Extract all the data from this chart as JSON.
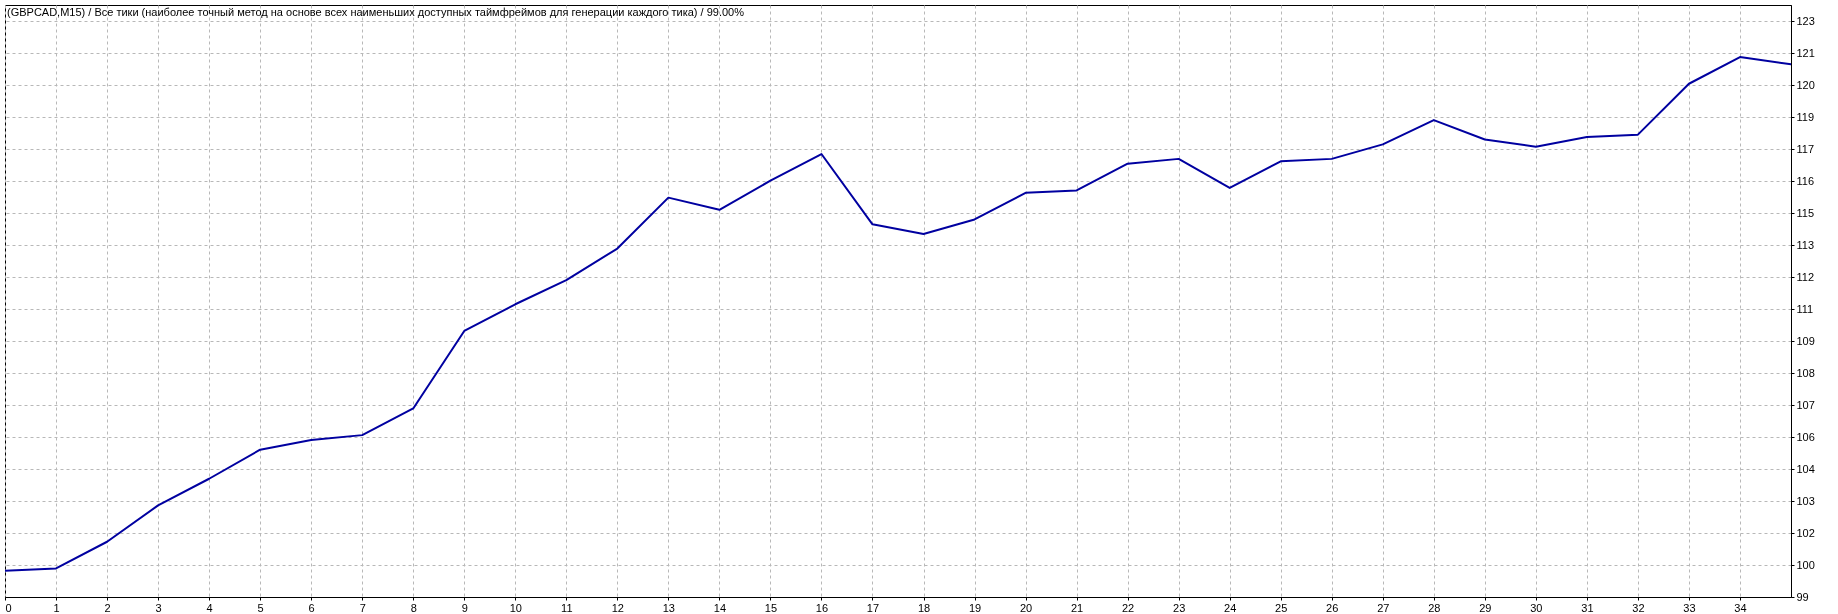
{
  "chart_data": {
    "type": "line",
    "title": "(GBPCAD,M15) / Все тики (наиболее точный метод на основе всех наименьших доступных таймфреймов для генерации каждого тика) / 99.00%",
    "x": [
      0,
      1,
      2,
      3,
      4,
      5,
      6,
      7,
      8,
      9,
      10,
      11,
      12,
      13,
      14,
      15,
      16,
      17,
      18,
      19,
      20,
      21,
      22,
      23,
      24,
      25,
      26,
      27,
      28,
      29,
      30,
      31,
      32,
      33,
      34,
      35
    ],
    "values": [
      100.0,
      100.1,
      101.2,
      102.7,
      103.8,
      105.0,
      105.4,
      105.6,
      106.7,
      109.9,
      111.0,
      112.0,
      113.3,
      115.4,
      114.9,
      116.1,
      117.2,
      114.3,
      113.9,
      114.5,
      115.6,
      115.7,
      116.8,
      117.0,
      115.8,
      116.9,
      117.0,
      117.6,
      118.6,
      117.8,
      117.5,
      117.9,
      118.0,
      120.1,
      121.2,
      120.9
    ],
    "color": "#0000a0",
    "xlim": [
      0,
      35
    ],
    "xticks": [
      0,
      1,
      2,
      3,
      4,
      5,
      6,
      7,
      8,
      9,
      10,
      11,
      12,
      13,
      14,
      15,
      16,
      17,
      18,
      19,
      20,
      21,
      22,
      23,
      24,
      25,
      26,
      27,
      28,
      29,
      30,
      31,
      32,
      33,
      34
    ],
    "ylim": [
      98.92,
      123.35
    ],
    "yticks": [
      {
        "value": 98.92,
        "label": "99"
      },
      {
        "value": 100.24,
        "label": "100"
      },
      {
        "value": 101.56,
        "label": "102"
      },
      {
        "value": 102.88,
        "label": "103"
      },
      {
        "value": 104.2,
        "label": "104"
      },
      {
        "value": 105.52,
        "label": "106"
      },
      {
        "value": 106.84,
        "label": "107"
      },
      {
        "value": 108.16,
        "label": "108"
      },
      {
        "value": 109.48,
        "label": "109"
      },
      {
        "value": 110.8,
        "label": "111"
      },
      {
        "value": 112.12,
        "label": "112"
      },
      {
        "value": 113.44,
        "label": "113"
      },
      {
        "value": 114.76,
        "label": "115"
      },
      {
        "value": 116.08,
        "label": "116"
      },
      {
        "value": 117.4,
        "label": "117"
      },
      {
        "value": 118.72,
        "label": "119"
      },
      {
        "value": 120.04,
        "label": "120"
      },
      {
        "value": 121.36,
        "label": "121"
      },
      {
        "value": 122.68,
        "label": "123"
      }
    ],
    "grid": true
  }
}
